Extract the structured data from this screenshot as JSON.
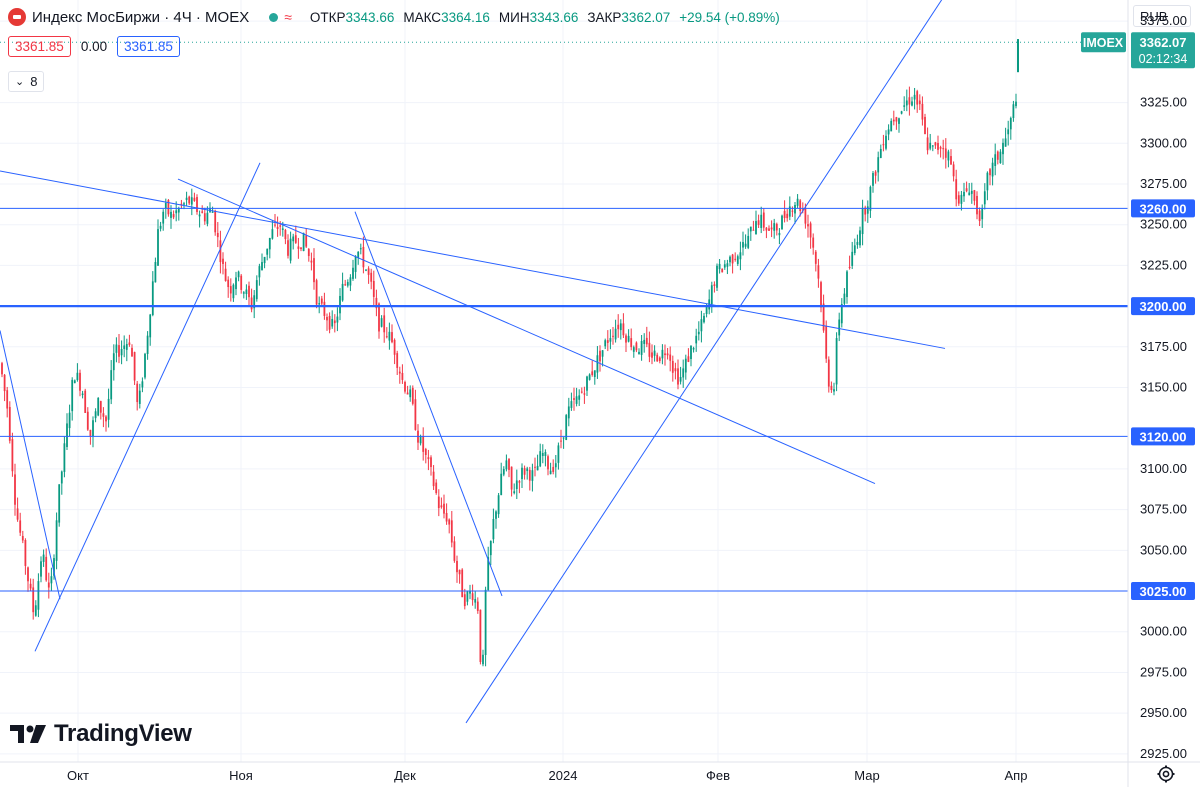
{
  "header": {
    "symbol": "Индекс МосБиржи · 4Ч · MOEX",
    "open_label": "ОТКР",
    "open_value": "3343.66",
    "high_label": "МАКС",
    "high_value": "3364.16",
    "low_label": "МИН",
    "low_value": "3343.66",
    "close_label": "ЗАКР",
    "close_value": "3362.07",
    "change": "+29.54 (+0.89%)",
    "sell_price": "3361.85",
    "spread": "0.00",
    "buy_price": "3361.85",
    "indicators_count": "8",
    "currency": "RUB"
  },
  "logo": {
    "text": "TradingView"
  },
  "colors": {
    "up": "#089981",
    "down": "#f23645",
    "line": "#2962ff",
    "tag": "#26a69a"
  },
  "chart_data": {
    "type": "candlestick",
    "symbol": "IMOEX",
    "ylim": [
      2920,
      3388
    ],
    "y_ticks": [
      3375,
      3325,
      3300,
      3275,
      3250,
      3225,
      3175,
      3150,
      3100,
      3075,
      3050,
      3000,
      2975,
      2950,
      2925
    ],
    "x_ticks": [
      "Окт",
      "Ноя",
      "Дек",
      "2024",
      "Фев",
      "Мар",
      "Апр"
    ],
    "horizontal_levels": [
      3260,
      3200,
      3120,
      3025
    ],
    "last_price": {
      "label": "IMOEX",
      "value": "3362.07",
      "countdown": "02:12:34"
    },
    "path": [
      [
        0,
        3165
      ],
      [
        8,
        3135
      ],
      [
        16,
        3075
      ],
      [
        26,
        3040
      ],
      [
        34,
        3010
      ],
      [
        42,
        3050
      ],
      [
        50,
        3020
      ],
      [
        58,
        3080
      ],
      [
        66,
        3120
      ],
      [
        74,
        3160
      ],
      [
        82,
        3150
      ],
      [
        90,
        3120
      ],
      [
        98,
        3140
      ],
      [
        106,
        3130
      ],
      [
        114,
        3170
      ],
      [
        122,
        3175
      ],
      [
        130,
        3180
      ],
      [
        138,
        3135
      ],
      [
        146,
        3175
      ],
      [
        152,
        3210
      ],
      [
        158,
        3245
      ],
      [
        164,
        3260
      ],
      [
        172,
        3255
      ],
      [
        180,
        3260
      ],
      [
        188,
        3265
      ],
      [
        196,
        3260
      ],
      [
        204,
        3255
      ],
      [
        212,
        3260
      ],
      [
        218,
        3240
      ],
      [
        224,
        3220
      ],
      [
        230,
        3210
      ],
      [
        236,
        3220
      ],
      [
        244,
        3210
      ],
      [
        252,
        3200
      ],
      [
        258,
        3220
      ],
      [
        266,
        3235
      ],
      [
        272,
        3245
      ],
      [
        280,
        3250
      ],
      [
        288,
        3235
      ],
      [
        296,
        3240
      ],
      [
        304,
        3240
      ],
      [
        312,
        3225
      ],
      [
        318,
        3200
      ],
      [
        326,
        3195
      ],
      [
        334,
        3185
      ],
      [
        342,
        3210
      ],
      [
        350,
        3220
      ],
      [
        356,
        3235
      ],
      [
        362,
        3230
      ],
      [
        370,
        3215
      ],
      [
        378,
        3190
      ],
      [
        386,
        3185
      ],
      [
        394,
        3175
      ],
      [
        402,
        3155
      ],
      [
        410,
        3145
      ],
      [
        418,
        3120
      ],
      [
        424,
        3110
      ],
      [
        432,
        3095
      ],
      [
        440,
        3075
      ],
      [
        448,
        3070
      ],
      [
        456,
        3040
      ],
      [
        464,
        3020
      ],
      [
        472,
        3025
      ],
      [
        478,
        3015
      ],
      [
        482,
        2965
      ],
      [
        486,
        3030
      ],
      [
        494,
        3070
      ],
      [
        500,
        3090
      ],
      [
        506,
        3105
      ],
      [
        512,
        3085
      ],
      [
        518,
        3095
      ],
      [
        526,
        3100
      ],
      [
        534,
        3095
      ],
      [
        542,
        3110
      ],
      [
        550,
        3100
      ],
      [
        556,
        3105
      ],
      [
        562,
        3120
      ],
      [
        568,
        3135
      ],
      [
        574,
        3140
      ],
      [
        580,
        3145
      ],
      [
        588,
        3155
      ],
      [
        596,
        3165
      ],
      [
        604,
        3175
      ],
      [
        612,
        3185
      ],
      [
        620,
        3190
      ],
      [
        628,
        3180
      ],
      [
        636,
        3175
      ],
      [
        644,
        3175
      ],
      [
        652,
        3170
      ],
      [
        660,
        3170
      ],
      [
        668,
        3175
      ],
      [
        674,
        3160
      ],
      [
        680,
        3155
      ],
      [
        686,
        3165
      ],
      [
        692,
        3175
      ],
      [
        700,
        3185
      ],
      [
        708,
        3200
      ],
      [
        716,
        3220
      ],
      [
        724,
        3225
      ],
      [
        732,
        3230
      ],
      [
        740,
        3235
      ],
      [
        748,
        3240
      ],
      [
        756,
        3255
      ],
      [
        764,
        3250
      ],
      [
        772,
        3245
      ],
      [
        780,
        3250
      ],
      [
        788,
        3260
      ],
      [
        796,
        3265
      ],
      [
        802,
        3260
      ],
      [
        808,
        3250
      ],
      [
        814,
        3235
      ],
      [
        820,
        3210
      ],
      [
        824,
        3180
      ],
      [
        828,
        3155
      ],
      [
        834,
        3150
      ],
      [
        838,
        3190
      ],
      [
        846,
        3215
      ],
      [
        854,
        3235
      ],
      [
        862,
        3255
      ],
      [
        870,
        3270
      ],
      [
        876,
        3285
      ],
      [
        884,
        3305
      ],
      [
        892,
        3315
      ],
      [
        900,
        3320
      ],
      [
        906,
        3325
      ],
      [
        914,
        3330
      ],
      [
        920,
        3320
      ],
      [
        926,
        3300
      ],
      [
        934,
        3295
      ],
      [
        942,
        3300
      ],
      [
        950,
        3290
      ],
      [
        956,
        3270
      ],
      [
        962,
        3265
      ],
      [
        970,
        3275
      ],
      [
        976,
        3260
      ],
      [
        982,
        3255
      ],
      [
        988,
        3280
      ],
      [
        996,
        3290
      ],
      [
        1004,
        3300
      ],
      [
        1010,
        3310
      ],
      [
        1016,
        3330
      ],
      [
        1018,
        3362
      ]
    ],
    "trend_lines": [
      {
        "from": [
          0,
          3283
        ],
        "to": [
          945,
          3174
        ]
      },
      {
        "from": [
          178,
          3278
        ],
        "to": [
          875,
          3091
        ]
      },
      {
        "from": [
          355,
          3258
        ],
        "to": [
          502,
          3022
        ]
      },
      {
        "from": [
          35,
          2988
        ],
        "to": [
          260,
          3288
        ]
      },
      {
        "from": [
          466,
          2944
        ],
        "to": [
          948,
          3394
        ]
      },
      {
        "from": [
          0,
          3185
        ],
        "to": [
          60,
          3020
        ]
      }
    ]
  }
}
